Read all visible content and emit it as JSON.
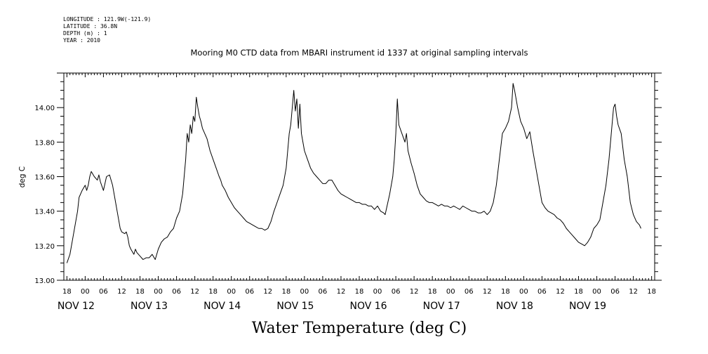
{
  "header": {
    "lines": [
      "LONGITUDE : 121.9W(-121.9)",
      "LATITUDE : 36.8N",
      "DEPTH (m) : 1",
      "YEAR : 2010"
    ]
  },
  "chart_data": {
    "type": "line",
    "title": "Mooring M0 CTD data from MBARI instrument id 1337 at original sampling intervals",
    "xlabel": "Water Temperature (deg C)",
    "ylabel": "deg C",
    "ylim": [
      13.0,
      14.2
    ],
    "yticks": [
      "13.00",
      "13.20",
      "13.40",
      "13.60",
      "13.80",
      "14.00"
    ],
    "hour_labels": [
      "18",
      "00",
      "06",
      "12",
      "18",
      "00",
      "06",
      "12",
      "18",
      "00",
      "06",
      "12",
      "18",
      "00",
      "06",
      "12",
      "18",
      "00",
      "06",
      "12",
      "18",
      "00",
      "06",
      "12",
      "18",
      "00",
      "06",
      "12",
      "18",
      "00",
      "06",
      "12",
      "18"
    ],
    "date_labels": [
      "NOV 12",
      "NOV 13",
      "NOV 14",
      "NOV 15",
      "NOV 16",
      "NOV 17",
      "NOV 18",
      "NOV 19"
    ],
    "x_unit": "hours since Nov 11 18:00",
    "xlim": [
      -1,
      193
    ],
    "series": [
      {
        "name": "",
        "color": "#000000",
        "points": [
          [
            0,
            13.1
          ],
          [
            1,
            13.15
          ],
          [
            2,
            13.25
          ],
          [
            3,
            13.35
          ],
          [
            3.5,
            13.4
          ],
          [
            4,
            13.48
          ],
          [
            5,
            13.52
          ],
          [
            6,
            13.55
          ],
          [
            6.5,
            13.52
          ],
          [
            7,
            13.55
          ],
          [
            7.5,
            13.6
          ],
          [
            8,
            13.63
          ],
          [
            9,
            13.6
          ],
          [
            10,
            13.58
          ],
          [
            10.5,
            13.61
          ],
          [
            11,
            13.57
          ],
          [
            12,
            13.52
          ],
          [
            13,
            13.6
          ],
          [
            14,
            13.61
          ],
          [
            14.5,
            13.58
          ],
          [
            15,
            13.55
          ],
          [
            15.5,
            13.5
          ],
          [
            16,
            13.45
          ],
          [
            16.5,
            13.4
          ],
          [
            17,
            13.35
          ],
          [
            17.5,
            13.3
          ],
          [
            18,
            13.28
          ],
          [
            19,
            13.27
          ],
          [
            19.5,
            13.28
          ],
          [
            20,
            13.25
          ],
          [
            20.5,
            13.2
          ],
          [
            21,
            13.18
          ],
          [
            22,
            13.15
          ],
          [
            22.5,
            13.18
          ],
          [
            23,
            13.16
          ],
          [
            24,
            13.14
          ],
          [
            25,
            13.12
          ],
          [
            26,
            13.13
          ],
          [
            27,
            13.13
          ],
          [
            28,
            13.15
          ],
          [
            29,
            13.12
          ],
          [
            30,
            13.18
          ],
          [
            31,
            13.22
          ],
          [
            32,
            13.24
          ],
          [
            33,
            13.25
          ],
          [
            34,
            13.28
          ],
          [
            35,
            13.3
          ],
          [
            36,
            13.36
          ],
          [
            37,
            13.4
          ],
          [
            38,
            13.5
          ],
          [
            38.5,
            13.6
          ],
          [
            39,
            13.7
          ],
          [
            39.5,
            13.85
          ],
          [
            40,
            13.8
          ],
          [
            40.5,
            13.9
          ],
          [
            41,
            13.85
          ],
          [
            41.5,
            13.95
          ],
          [
            42,
            13.92
          ],
          [
            42.5,
            14.06
          ],
          [
            43,
            14.0
          ],
          [
            43.5,
            13.95
          ],
          [
            44,
            13.92
          ],
          [
            44.5,
            13.88
          ],
          [
            45,
            13.86
          ],
          [
            46,
            13.82
          ],
          [
            47,
            13.75
          ],
          [
            48,
            13.7
          ],
          [
            49,
            13.65
          ],
          [
            50,
            13.6
          ],
          [
            50.5,
            13.58
          ],
          [
            51,
            13.55
          ],
          [
            52,
            13.52
          ],
          [
            53,
            13.48
          ],
          [
            54,
            13.45
          ],
          [
            55,
            13.42
          ],
          [
            56,
            13.4
          ],
          [
            57,
            13.38
          ],
          [
            58,
            13.36
          ],
          [
            59,
            13.34
          ],
          [
            60,
            13.33
          ],
          [
            61,
            13.32
          ],
          [
            62,
            13.31
          ],
          [
            63,
            13.3
          ],
          [
            64,
            13.3
          ],
          [
            65,
            13.29
          ],
          [
            66,
            13.3
          ],
          [
            67,
            13.34
          ],
          [
            68,
            13.4
          ],
          [
            69,
            13.45
          ],
          [
            70,
            13.5
          ],
          [
            71,
            13.55
          ],
          [
            72,
            13.65
          ],
          [
            72.5,
            13.75
          ],
          [
            73,
            13.85
          ],
          [
            73.5,
            13.9
          ],
          [
            74,
            14.0
          ],
          [
            74.5,
            14.1
          ],
          [
            75,
            13.98
          ],
          [
            75.5,
            14.05
          ],
          [
            76,
            13.88
          ],
          [
            76.5,
            14.02
          ],
          [
            77,
            13.85
          ],
          [
            78,
            13.75
          ],
          [
            79,
            13.7
          ],
          [
            80,
            13.65
          ],
          [
            81,
            13.62
          ],
          [
            82,
            13.6
          ],
          [
            83,
            13.58
          ],
          [
            84,
            13.56
          ],
          [
            85,
            13.56
          ],
          [
            86,
            13.58
          ],
          [
            87,
            13.58
          ],
          [
            88,
            13.55
          ],
          [
            89,
            13.52
          ],
          [
            90,
            13.5
          ],
          [
            91,
            13.49
          ],
          [
            92,
            13.48
          ],
          [
            93,
            13.47
          ],
          [
            94,
            13.46
          ],
          [
            95,
            13.45
          ],
          [
            96,
            13.45
          ],
          [
            97,
            13.44
          ],
          [
            98,
            13.44
          ],
          [
            99,
            13.43
          ],
          [
            100,
            13.43
          ],
          [
            101,
            13.41
          ],
          [
            102,
            13.43
          ],
          [
            103,
            13.4
          ],
          [
            104,
            13.39
          ],
          [
            104.5,
            13.38
          ],
          [
            105,
            13.42
          ],
          [
            106,
            13.5
          ],
          [
            107,
            13.6
          ],
          [
            107.5,
            13.7
          ],
          [
            108,
            13.85
          ],
          [
            108.5,
            14.05
          ],
          [
            109,
            13.9
          ],
          [
            110,
            13.85
          ],
          [
            111,
            13.8
          ],
          [
            111.5,
            13.85
          ],
          [
            112,
            13.75
          ],
          [
            113,
            13.68
          ],
          [
            114,
            13.62
          ],
          [
            115,
            13.55
          ],
          [
            116,
            13.5
          ],
          [
            117,
            13.48
          ],
          [
            118,
            13.46
          ],
          [
            119,
            13.45
          ],
          [
            120,
            13.45
          ],
          [
            121,
            13.44
          ],
          [
            122,
            13.43
          ],
          [
            123,
            13.44
          ],
          [
            124,
            13.43
          ],
          [
            125,
            13.43
          ],
          [
            126,
            13.42
          ],
          [
            127,
            13.43
          ],
          [
            128,
            13.42
          ],
          [
            129,
            13.41
          ],
          [
            130,
            13.43
          ],
          [
            131,
            13.42
          ],
          [
            132,
            13.41
          ],
          [
            133,
            13.4
          ],
          [
            134,
            13.4
          ],
          [
            135,
            13.39
          ],
          [
            136,
            13.39
          ],
          [
            137,
            13.4
          ],
          [
            138,
            13.38
          ],
          [
            139,
            13.4
          ],
          [
            140,
            13.45
          ],
          [
            141,
            13.55
          ],
          [
            142,
            13.7
          ],
          [
            143,
            13.85
          ],
          [
            144,
            13.88
          ],
          [
            145,
            13.92
          ],
          [
            146,
            14.0
          ],
          [
            146.5,
            14.14
          ],
          [
            147,
            14.1
          ],
          [
            148,
            14.0
          ],
          [
            149,
            13.92
          ],
          [
            150,
            13.88
          ],
          [
            151,
            13.82
          ],
          [
            152,
            13.86
          ],
          [
            153,
            13.75
          ],
          [
            154,
            13.65
          ],
          [
            155,
            13.55
          ],
          [
            156,
            13.45
          ],
          [
            157,
            13.42
          ],
          [
            158,
            13.4
          ],
          [
            159,
            13.39
          ],
          [
            160,
            13.38
          ],
          [
            161,
            13.36
          ],
          [
            162,
            13.35
          ],
          [
            163,
            13.33
          ],
          [
            164,
            13.3
          ],
          [
            165,
            13.28
          ],
          [
            166,
            13.26
          ],
          [
            167,
            13.24
          ],
          [
            168,
            13.22
          ],
          [
            169,
            13.21
          ],
          [
            170,
            13.2
          ],
          [
            171,
            13.22
          ],
          [
            172,
            13.25
          ],
          [
            173,
            13.3
          ],
          [
            174,
            13.32
          ],
          [
            175,
            13.35
          ],
          [
            176,
            13.45
          ],
          [
            177,
            13.55
          ],
          [
            178,
            13.7
          ],
          [
            179,
            13.9
          ],
          [
            179.5,
            14.0
          ],
          [
            180,
            14.02
          ],
          [
            180.5,
            13.95
          ],
          [
            181,
            13.9
          ],
          [
            182,
            13.85
          ],
          [
            183,
            13.7
          ],
          [
            184,
            13.6
          ],
          [
            185,
            13.45
          ],
          [
            186,
            13.38
          ],
          [
            187,
            13.34
          ],
          [
            188,
            13.32
          ],
          [
            188.5,
            13.3
          ]
        ]
      }
    ]
  }
}
